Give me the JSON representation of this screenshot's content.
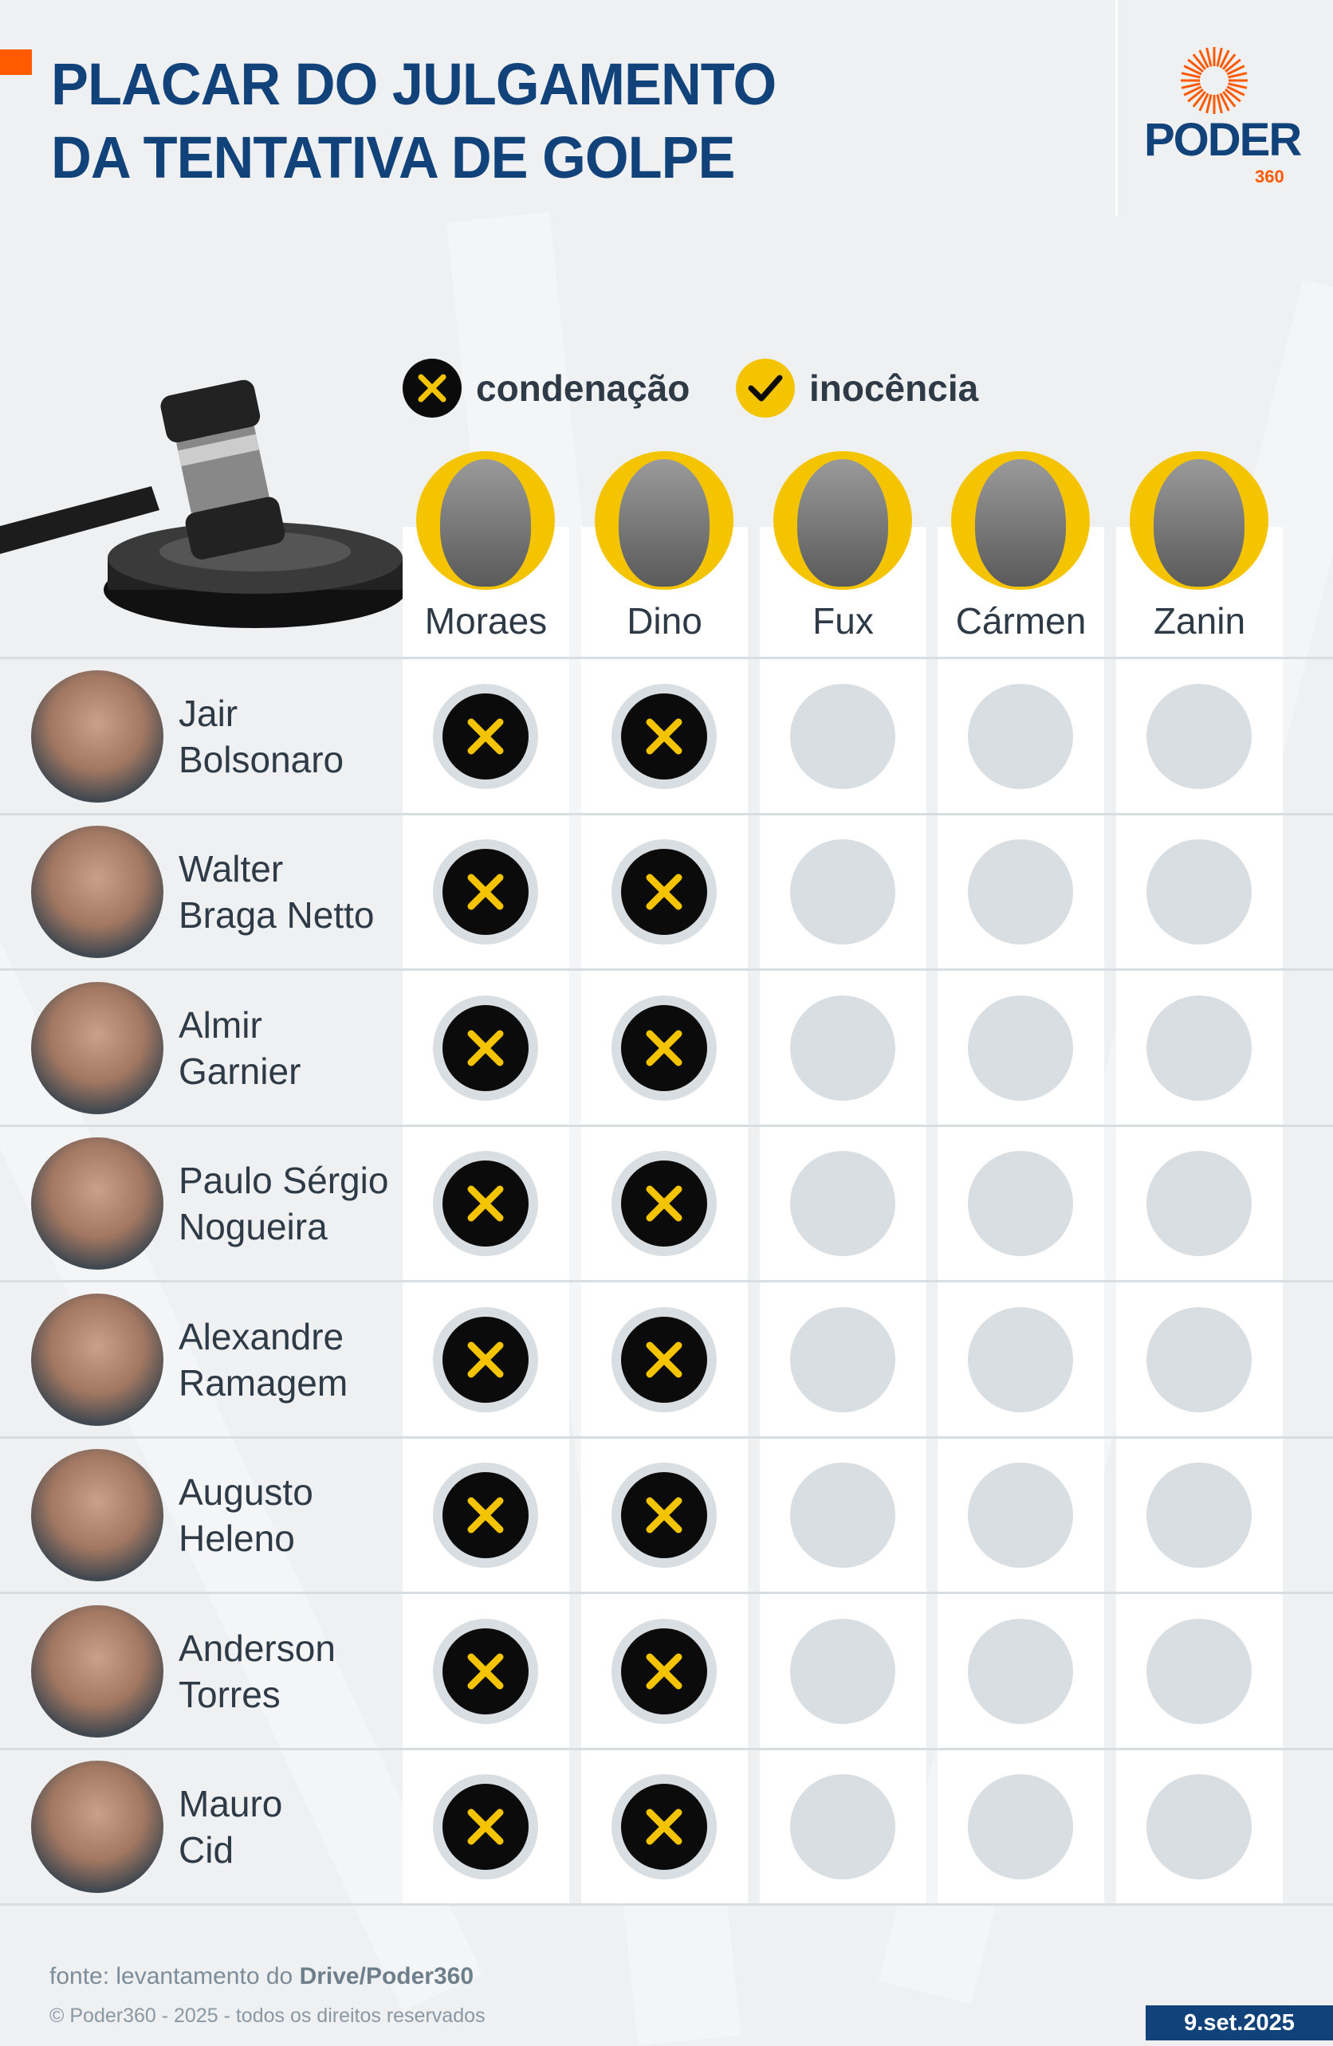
{
  "header": {
    "title_line1": "PLACAR DO JULGAMENTO",
    "title_line2": "DA TENTATIVA DE GOLPE"
  },
  "logo": {
    "text": "PODER",
    "number": "360",
    "color": "#ff5a00"
  },
  "colors": {
    "title": "#11437a",
    "accent": "#ff5a00",
    "yellow": "#f5c400",
    "black": "#0b0b0b",
    "pending": "#d9dee2"
  },
  "legend": [
    {
      "icon": "x-icon",
      "label": "condenação"
    },
    {
      "icon": "check-icon",
      "label": "inocência"
    }
  ],
  "judges": [
    {
      "name": "Moraes"
    },
    {
      "name": "Dino"
    },
    {
      "name": "Fux"
    },
    {
      "name": "Cármen"
    },
    {
      "name": "Zanin"
    }
  ],
  "defendants": [
    {
      "first": "Jair",
      "last": "Bolsonaro",
      "votes": [
        "condenação",
        "condenação",
        "pending",
        "pending",
        "pending"
      ]
    },
    {
      "first": "Walter",
      "last": "Braga Netto",
      "votes": [
        "condenação",
        "condenação",
        "pending",
        "pending",
        "pending"
      ]
    },
    {
      "first": "Almir",
      "last": "Garnier",
      "votes": [
        "condenação",
        "condenação",
        "pending",
        "pending",
        "pending"
      ]
    },
    {
      "first": "Paulo Sérgio",
      "last": "Nogueira",
      "votes": [
        "condenação",
        "condenação",
        "pending",
        "pending",
        "pending"
      ]
    },
    {
      "first": "Alexandre",
      "last": "Ramagem",
      "votes": [
        "condenação",
        "condenação",
        "pending",
        "pending",
        "pending"
      ]
    },
    {
      "first": "Augusto",
      "last": "Heleno",
      "votes": [
        "condenação",
        "condenação",
        "pending",
        "pending",
        "pending"
      ]
    },
    {
      "first": "Anderson",
      "last": "Torres",
      "votes": [
        "condenação",
        "condenação",
        "pending",
        "pending",
        "pending"
      ]
    },
    {
      "first": "Mauro",
      "last": "Cid",
      "votes": [
        "condenação",
        "condenação",
        "pending",
        "pending",
        "pending"
      ]
    }
  ],
  "footer": {
    "source_prefix": "fonte: levantamento do ",
    "source_bold": "Drive/Poder360",
    "copyright": "© Poder360 - 2025 - todos os direitos reservados",
    "date": "9.set.2025"
  }
}
